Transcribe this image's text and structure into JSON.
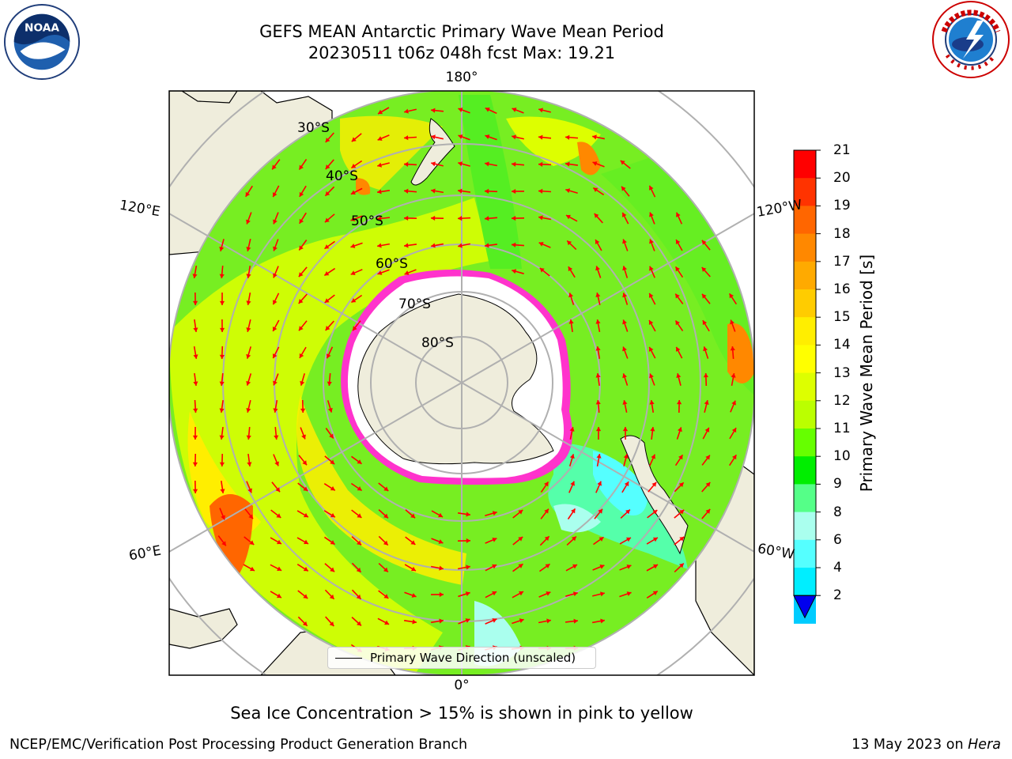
{
  "title": {
    "line1": "GEFS MEAN Antarctic Primary Wave Mean Period",
    "line2": "20230511 t06z 048h fcst   Max: 19.21"
  },
  "logos": {
    "left_icon": "noaa-logo",
    "right_icon": "nws-logo"
  },
  "map": {
    "projection": "south-polar-stereographic",
    "longitude_labels": {
      "top": "180°",
      "upper_left": "120°E",
      "upper_right": "120°W",
      "lower_left": "60°E",
      "lower_right": "60°W",
      "bottom": "0°"
    },
    "latitude_labels": [
      "30°S",
      "40°S",
      "50°S",
      "60°S",
      "70°S",
      "80°S"
    ],
    "legend": {
      "label": "Primary Wave Direction (unscaled)"
    },
    "arrow_color": "#ff0000",
    "land_color": "#efeddc",
    "sea_ice_color": "#ff33cc"
  },
  "colorbar": {
    "label": "Primary Wave Mean Period [s]",
    "ticks": [
      "21",
      "20",
      "19",
      "18",
      "17",
      "16",
      "15",
      "14",
      "13",
      "12",
      "11",
      "10",
      "9",
      "8",
      "6",
      "4",
      "2"
    ],
    "colors": [
      "#ff0000",
      "#ff3300",
      "#ff6600",
      "#ff8800",
      "#ffaa00",
      "#ffcc00",
      "#ffee00",
      "#ffff00",
      "#ddff00",
      "#bbff00",
      "#66ff00",
      "#00ee00",
      "#55ff88",
      "#aaffee",
      "#55ffff",
      "#00eeff",
      "#00ccff",
      "#0077ff"
    ],
    "extend_color": "#0000ee"
  },
  "chart_data": {
    "type": "heatmap",
    "variable": "Primary Wave Mean Period",
    "units": "s",
    "max": 19.21,
    "colorbar_range": [
      2,
      21
    ],
    "colorbar_levels": [
      2,
      4,
      6,
      8,
      9,
      10,
      11,
      12,
      13,
      14,
      15,
      16,
      17,
      18,
      19,
      20,
      21
    ]
  },
  "annotation": "Sea Ice Concentration > 15% is shown in pink to yellow",
  "footer": {
    "left": "NCEP/EMC/Verification Post Processing Product Generation Branch",
    "right_date": "13 May 2023 on",
    "right_host": "Hera"
  }
}
